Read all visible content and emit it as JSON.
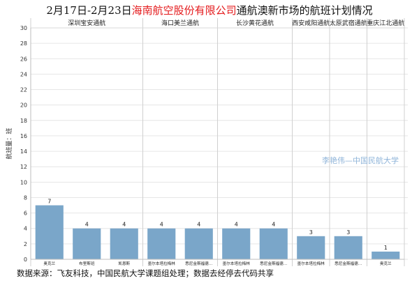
{
  "title": {
    "prefix": "2月17日-2月23日",
    "highlight": "海南航空股份有限公司",
    "suffix": "通航澳新市场的航班计划情况"
  },
  "watermark": "李艳伟—中国民航大学",
  "footer": "数据来源：飞友科技，中国民航大学课题组处理；数据去经停去代码共享",
  "colors": {
    "bar": "#7aa6c9",
    "highlight": "#e41a1c",
    "grid": "#e6e6e6",
    "watermark": "#8fb4d9"
  },
  "chart_data": {
    "type": "bar",
    "ylabel": "航班量：班",
    "ylim": [
      0,
      30
    ],
    "yticks": [
      0,
      2,
      4,
      6,
      8,
      10,
      12,
      14,
      16,
      18,
      20,
      22,
      24,
      26,
      28,
      30
    ],
    "grid": true,
    "panels": [
      {
        "name": "深圳宝安通航",
        "categories": [
          "奥克兰",
          "布里斯班",
          "凯恩斯"
        ],
        "values": [
          7,
          4,
          4
        ]
      },
      {
        "name": "海口美兰通航",
        "categories": [
          "墨尔本塔拉梅林",
          "悉尼金斯福德…"
        ],
        "values": [
          4,
          4
        ]
      },
      {
        "name": "长沙黄花通航",
        "categories": [
          "墨尔本塔拉梅林",
          "悉尼金斯福德…"
        ],
        "values": [
          4,
          4
        ]
      },
      {
        "name": "西安咸阳通航",
        "categories": [
          "墨尔本塔拉梅林"
        ],
        "values": [
          3
        ]
      },
      {
        "name": "太原武宿通航",
        "categories": [
          "悉尼金斯福德…"
        ],
        "values": [
          3
        ]
      },
      {
        "name": "重庆江北通航",
        "categories": [
          "奥克兰"
        ],
        "values": [
          1
        ]
      }
    ]
  }
}
